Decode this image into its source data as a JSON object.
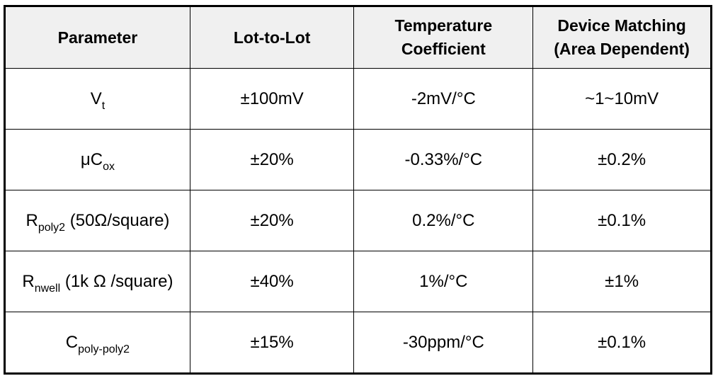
{
  "table": {
    "headers": [
      {
        "line1": "Parameter",
        "line2": ""
      },
      {
        "line1": "Lot-to-Lot",
        "line2": ""
      },
      {
        "line1": "Temperature",
        "line2": "Coefficient"
      },
      {
        "line1": "Device Matching",
        "line2": "(Area Dependent)"
      }
    ],
    "rows": [
      {
        "param_main": "V",
        "param_sub": "t",
        "param_suffix": "",
        "lot_to_lot": "±100mV",
        "temp_coeff": "-2mV/°C",
        "matching": "~1~10mV"
      },
      {
        "param_main": "μC",
        "param_sub": "ox",
        "param_suffix": "",
        "lot_to_lot": "±20%",
        "temp_coeff": "-0.33%/°C",
        "matching": "±0.2%"
      },
      {
        "param_main": "R",
        "param_sub": "poly2",
        "param_suffix": " (50Ω/square)",
        "lot_to_lot": "±20%",
        "temp_coeff": "0.2%/°C",
        "matching": "±0.1%"
      },
      {
        "param_main": "R",
        "param_sub": "nwell",
        "param_suffix": " (1k Ω /square)",
        "lot_to_lot": "±40%",
        "temp_coeff": "1%/°C",
        "matching": "±1%"
      },
      {
        "param_main": "C",
        "param_sub": "poly-poly2",
        "param_suffix": "",
        "lot_to_lot": "±15%",
        "temp_coeff": "-30ppm/°C",
        "matching": "±0.1%"
      }
    ]
  }
}
